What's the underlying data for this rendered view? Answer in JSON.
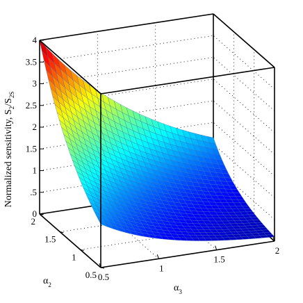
{
  "chart_data": {
    "type": "surface",
    "xlabel": {
      "main": "α",
      "sub": "3"
    },
    "ylabel": {
      "main": "α",
      "sub": "2"
    },
    "zlabel": {
      "prefix": "Normalized sensitivity, S",
      "sub1": "2",
      "mid": "/S",
      "sub2": "2S"
    },
    "x_ticks": [
      "0.5",
      "1",
      "1.5",
      "2"
    ],
    "y_ticks": [
      "0.5",
      "1",
      "1.5",
      "2"
    ],
    "z_ticks": [
      "0",
      ".5",
      "1",
      "1.5",
      "2",
      "2.5",
      "3",
      "3.5",
      "4"
    ],
    "xlim": [
      0.5,
      2
    ],
    "ylim": [
      0.5,
      2
    ],
    "zlim": [
      0,
      4
    ],
    "grid": true,
    "colormap": "jet",
    "corner_values": [
      {
        "alpha3": 0.5,
        "alpha2": 2,
        "value": 4.0
      },
      {
        "alpha3": 0.5,
        "alpha2": 0.5,
        "value": 1.0
      },
      {
        "alpha3": 2,
        "alpha2": 2,
        "value": 1.15
      },
      {
        "alpha3": 2,
        "alpha2": 0.5,
        "value": 0.1
      }
    ]
  }
}
